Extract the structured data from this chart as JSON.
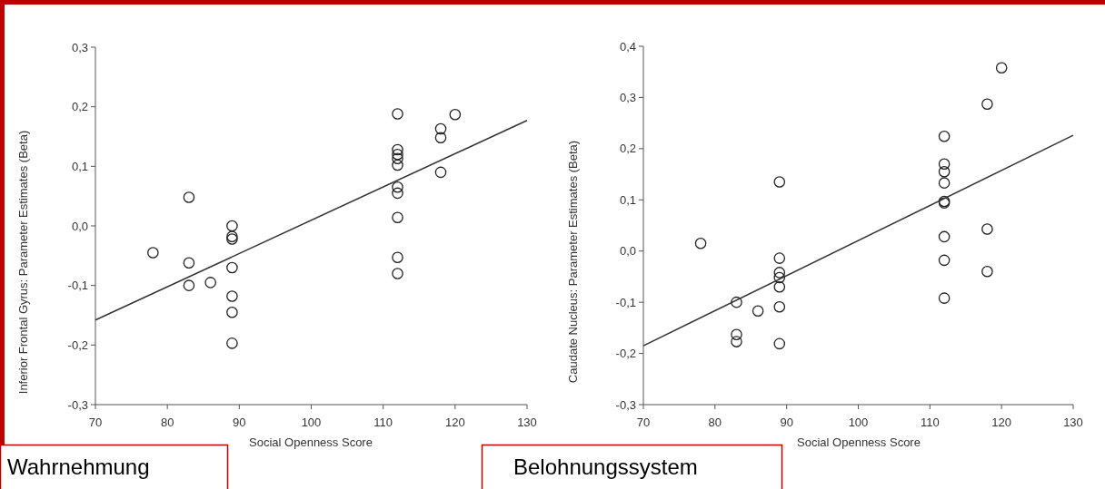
{
  "chart_data": [
    {
      "type": "scatter",
      "xlabel": "Social Openness Score",
      "ylabel": "Inferior Frontal Gyrus: Parameter Estimates (Beta)",
      "annotations": [
        "Wahrnehmung"
      ],
      "xlim": [
        70,
        130
      ],
      "xticks": [
        70,
        80,
        90,
        100,
        110,
        120,
        130
      ],
      "ylim": [
        -0.3,
        0.3
      ],
      "yticks": [
        {
          "value": -0.3,
          "label": "-0,3"
        },
        {
          "value": -0.2,
          "label": "-0,2"
        },
        {
          "value": -0.1,
          "label": "-0,1"
        },
        {
          "value": 0,
          "label": "0,0"
        },
        {
          "value": 0.1,
          "label": "0,1"
        },
        {
          "value": 0.2,
          "label": "0,2"
        },
        {
          "value": 0.3,
          "label": "0,3"
        }
      ],
      "grid": false,
      "series": [
        {
          "marker": "circle",
          "color": "#222222",
          "x": [
            78,
            83,
            83,
            83,
            86,
            89,
            89,
            89,
            89,
            89,
            89,
            89,
            112,
            112,
            112,
            112,
            112,
            112,
            112,
            112,
            112,
            112,
            118,
            118,
            118,
            120
          ],
          "values": [
            -0.045,
            0.048,
            -0.062,
            -0.1,
            -0.095,
            0.0,
            -0.018,
            -0.022,
            -0.07,
            -0.118,
            -0.145,
            -0.197,
            0.188,
            0.128,
            0.12,
            0.113,
            0.102,
            0.065,
            0.055,
            0.014,
            -0.053,
            -0.08,
            0.163,
            0.148,
            0.09,
            0.187
          ]
        },
        {
          "type": "line",
          "color": "#333333",
          "x": [
            70,
            130
          ],
          "values": [
            -0.158,
            0.177
          ]
        }
      ]
    },
    {
      "type": "scatter",
      "xlabel": "Social Openness Score",
      "ylabel": "Caudate Nucleus: Parameter Estimates (Beta)",
      "annotations": [
        "Belohnungssystem"
      ],
      "xlim": [
        70,
        130
      ],
      "xticks": [
        70,
        80,
        90,
        100,
        110,
        120,
        130
      ],
      "ylim": [
        -0.3,
        0.4
      ],
      "yticks": [
        {
          "value": -0.3,
          "label": "-0,3"
        },
        {
          "value": -0.2,
          "label": "-0,2"
        },
        {
          "value": -0.1,
          "label": "-0,1"
        },
        {
          "value": 0,
          "label": "0,0"
        },
        {
          "value": 0.1,
          "label": "0,1"
        },
        {
          "value": 0.2,
          "label": "0,2"
        },
        {
          "value": 0.3,
          "label": "0,3"
        },
        {
          "value": 0.4,
          "label": "0,4"
        }
      ],
      "grid": false,
      "series": [
        {
          "marker": "circle",
          "color": "#222222",
          "x": [
            78,
            83,
            83,
            83,
            86,
            89,
            89,
            89,
            89,
            89,
            89,
            89,
            112,
            112,
            112,
            112,
            112,
            112,
            112,
            112,
            112,
            118,
            118,
            118,
            120
          ],
          "values": [
            0.015,
            -0.1,
            -0.163,
            -0.177,
            -0.117,
            0.135,
            -0.014,
            -0.042,
            -0.052,
            -0.07,
            -0.109,
            -0.181,
            0.224,
            0.17,
            0.155,
            0.133,
            0.097,
            0.094,
            0.028,
            -0.018,
            -0.092,
            0.287,
            0.043,
            -0.04,
            0.358
          ]
        },
        {
          "type": "line",
          "color": "#333333",
          "x": [
            70,
            130
          ],
          "values": [
            -0.185,
            0.226
          ]
        }
      ]
    }
  ]
}
